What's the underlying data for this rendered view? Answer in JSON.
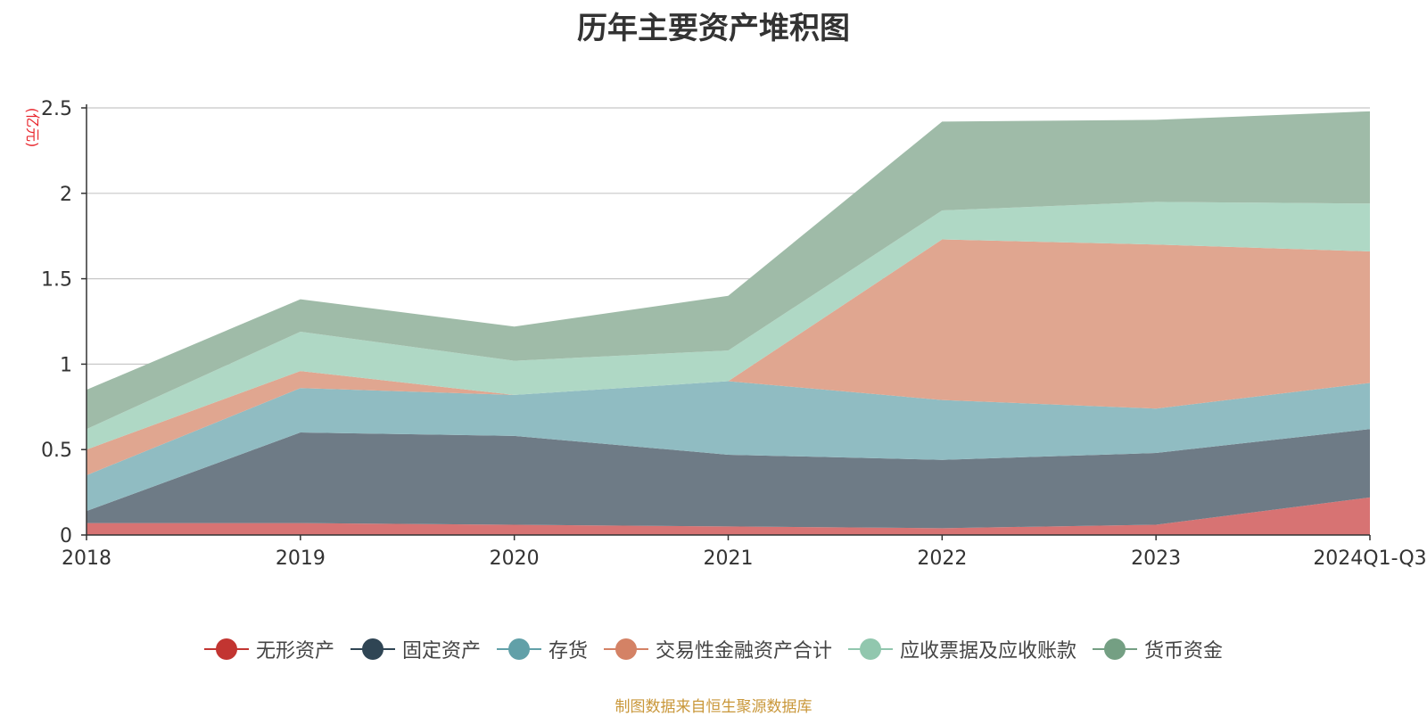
{
  "chart_data": {
    "type": "area",
    "stacked": true,
    "title": "历年主要资产堆积图",
    "ylabel": "(亿元)",
    "xlabel": "",
    "categories": [
      "2018",
      "2019",
      "2020",
      "2021",
      "2022",
      "2023",
      "2024Q1-Q3"
    ],
    "ylim": [
      0,
      2.5
    ],
    "yticks": [
      "0",
      "0.5",
      "1",
      "1.5",
      "2",
      "2.5"
    ],
    "grid": true,
    "legend_position": "bottom",
    "series": [
      {
        "name": "无形资产",
        "color": "#c23531",
        "area_color": "#d77373",
        "values": [
          0.07,
          0.07,
          0.06,
          0.05,
          0.04,
          0.06,
          0.22
        ]
      },
      {
        "name": "固定资产",
        "color": "#2f4554",
        "area_color": "#6e7b86",
        "values": [
          0.07,
          0.53,
          0.52,
          0.42,
          0.4,
          0.42,
          0.4
        ]
      },
      {
        "name": "存货",
        "color": "#61a0a8",
        "area_color": "#90bcc2",
        "values": [
          0.21,
          0.26,
          0.24,
          0.43,
          0.35,
          0.26,
          0.27
        ]
      },
      {
        "name": "交易性金融资产合计",
        "color": "#d48265",
        "area_color": "#e0a690",
        "values": [
          0.15,
          0.1,
          0.0,
          0.0,
          0.94,
          0.96,
          0.77
        ]
      },
      {
        "name": "应收票据及应收账款",
        "color": "#91c7ae",
        "area_color": "#afd8c5",
        "values": [
          0.12,
          0.23,
          0.2,
          0.18,
          0.17,
          0.25,
          0.28
        ]
      },
      {
        "name": "货币资金",
        "color": "#749f83",
        "area_color": "#9fbba8",
        "values": [
          0.23,
          0.19,
          0.2,
          0.32,
          0.52,
          0.48,
          0.54
        ]
      }
    ]
  },
  "source_note": "制图数据来自恒生聚源数据库"
}
